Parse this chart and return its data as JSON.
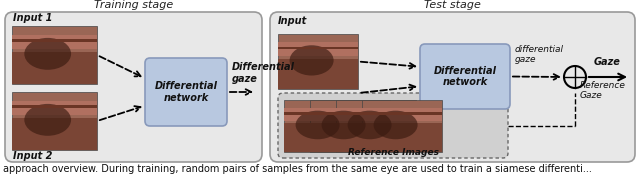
{
  "fig_width": 6.4,
  "fig_height": 1.74,
  "dpi": 100,
  "bg_color": "#ffffff",
  "caption_text": "approach overview. During training, random pairs of samples from the same eye are used to train a siamese differenti...",
  "caption_fontsize": 7.0,
  "training_title": "Training stage",
  "test_title": "Test stage",
  "title_fontsize": 8.0,
  "label_fontsize": 7.0,
  "eye_dark": "#6b3828",
  "eye_mid": "#8b4c35",
  "eye_light": "#a06050",
  "eye_shadow": "#3a1a10"
}
